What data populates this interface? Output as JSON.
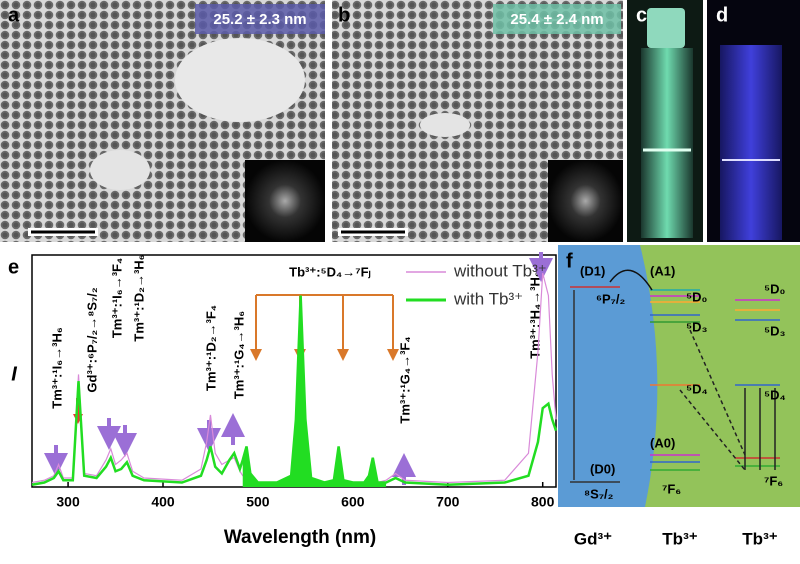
{
  "panels": {
    "a": {
      "label": "a",
      "size": "25.2 ± 2.3 nm"
    },
    "b": {
      "label": "b",
      "size": "25.4 ± 2.4 nm"
    },
    "c": {
      "label": "c"
    },
    "d": {
      "label": "d"
    },
    "e": {
      "label": "e"
    },
    "f": {
      "label": "f"
    }
  },
  "chart_data": {
    "type": "line",
    "xlabel": "Wavelength (nm)",
    "ylabel": "I",
    "xlim": [
      262,
      814
    ],
    "xticks": [
      300,
      400,
      500,
      600,
      700,
      800
    ],
    "ylim": [
      0,
      1.03
    ],
    "legend": "upper right",
    "x": [
      262,
      275,
      285,
      290,
      295,
      305,
      311,
      317,
      330,
      340,
      345,
      350,
      356,
      362,
      368,
      380,
      420,
      440,
      446,
      450,
      455,
      462,
      470,
      475,
      481,
      484,
      488,
      492,
      500,
      520,
      535,
      540,
      545,
      550,
      556,
      570,
      580,
      585,
      590,
      600,
      612,
      617,
      621,
      626,
      635,
      645,
      655,
      700,
      760,
      785,
      795,
      800,
      806,
      810,
      814
    ],
    "series": [
      {
        "name": "without Tb³⁺",
        "color": "#d98ad9",
        "values": [
          0.02,
          0.03,
          0.05,
          0.1,
          0.04,
          0.04,
          0.5,
          0.06,
          0.05,
          0.12,
          0.17,
          0.1,
          0.12,
          0.15,
          0.07,
          0.04,
          0.03,
          0.08,
          0.2,
          0.32,
          0.15,
          0.1,
          0.12,
          0.13,
          0.07,
          0.05,
          0.04,
          0.03,
          0.02,
          0.02,
          0.02,
          0.02,
          0.02,
          0.02,
          0.02,
          0.02,
          0.02,
          0.02,
          0.02,
          0.02,
          0.02,
          0.02,
          0.02,
          0.02,
          0.03,
          0.06,
          0.03,
          0.02,
          0.03,
          0.15,
          0.6,
          0.95,
          0.85,
          0.5,
          0.3
        ]
      },
      {
        "name": "with Tb³⁺",
        "color": "#22dd22",
        "values": [
          0.01,
          0.02,
          0.04,
          0.07,
          0.03,
          0.03,
          0.47,
          0.05,
          0.04,
          0.09,
          0.13,
          0.07,
          0.08,
          0.11,
          0.05,
          0.03,
          0.02,
          0.05,
          0.12,
          0.18,
          0.09,
          0.06,
          0.12,
          0.15,
          0.08,
          0.12,
          0.18,
          0.06,
          0.02,
          0.02,
          0.05,
          0.3,
          0.85,
          0.3,
          0.04,
          0.02,
          0.03,
          0.18,
          0.03,
          0.02,
          0.02,
          0.05,
          0.13,
          0.02,
          0.02,
          0.04,
          0.02,
          0.01,
          0.02,
          0.05,
          0.2,
          0.35,
          0.37,
          0.3,
          0.25
        ]
      }
    ],
    "annotations": [
      "Tm³⁺:¹I₆→³H₆",
      "Gd³⁺:⁶P₇/₂→⁸S₇/₂",
      "Tm³⁺:¹I₆→³F₄",
      "Tm³⁺:¹D₂→³H₆",
      "Tm³⁺:¹D₂→³F₄",
      "Tm³⁺:¹G₄→³H₆",
      "Tb³⁺:⁵D₄→⁷Fⱼ",
      "Tm³⁺:¹G₄→³F₄",
      "Tm³⁺:³H₄→³H₆"
    ]
  },
  "diagram": {
    "gd_levels": [
      "(D1)",
      "⁶P₇/₂",
      "(D0)",
      "⁸S₇/₂"
    ],
    "tb1_levels": [
      "(A1)",
      "⁵D₀",
      "⁵D₃",
      "⁵D₄",
      "(A0)",
      "⁷F₆"
    ],
    "tb2_levels": [
      "⁵D₀",
      "⁵D₃",
      "⁵D₄",
      "⁷F₆"
    ],
    "ions": [
      "Gd³⁺",
      "Tb³⁺",
      "Tb³⁺"
    ]
  }
}
